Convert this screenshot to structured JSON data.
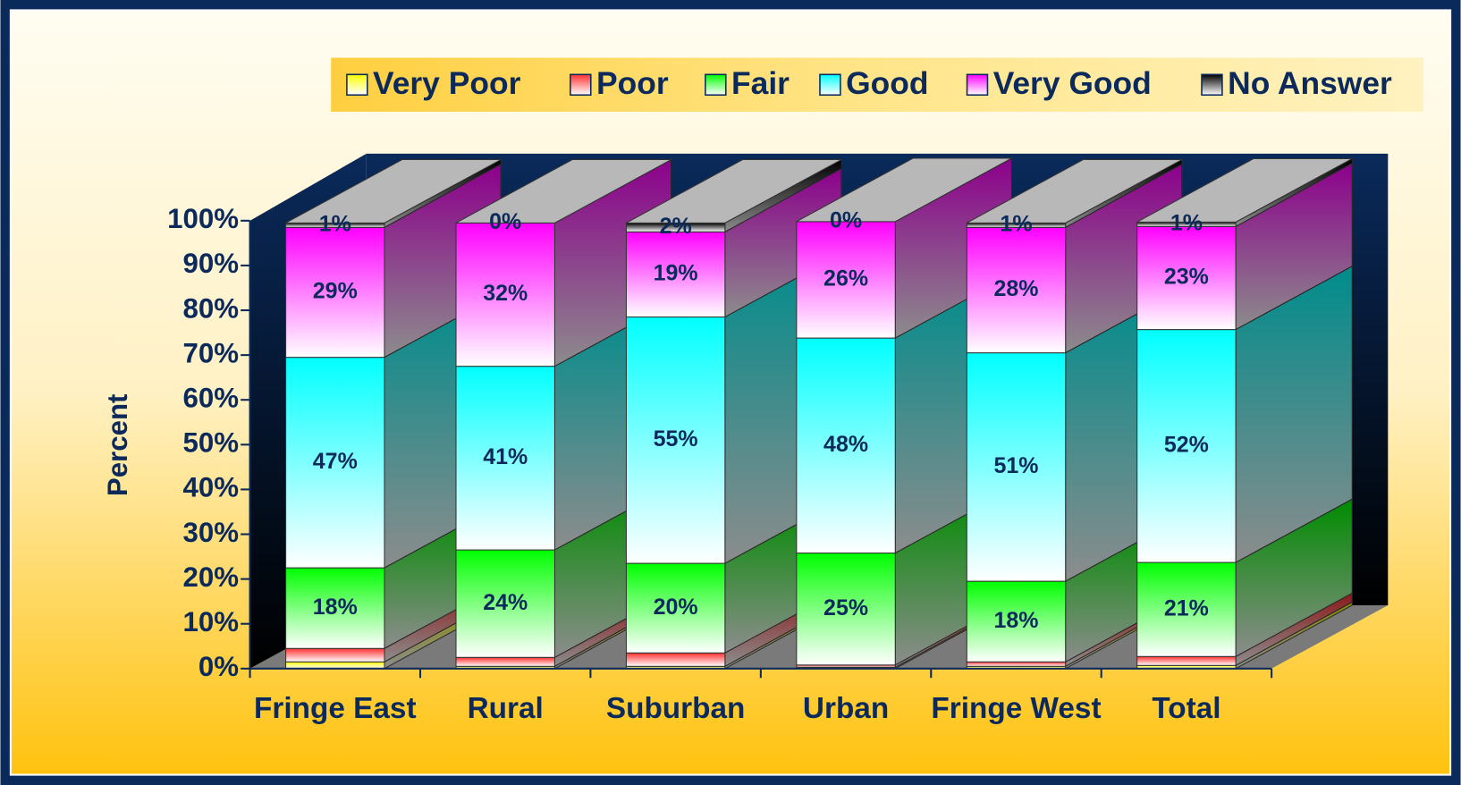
{
  "chart_data": {
    "type": "bar3d_stacked",
    "y_label": "Percent",
    "categories": [
      "Fringe East",
      "Rural",
      "Suburban",
      "Urban",
      "Fringe West",
      "Total"
    ],
    "series": [
      {
        "name": "Very Poor",
        "color": "#ffff00",
        "values": [
          1.5,
          0.5,
          0.5,
          0.3,
          0.5,
          0.7
        ]
      },
      {
        "name": "Poor",
        "color": "#ff3030",
        "values": [
          3,
          2,
          3,
          0.5,
          1,
          2
        ]
      },
      {
        "name": "Fair",
        "color": "#00ff00",
        "values": [
          18,
          24,
          20,
          25,
          18,
          21
        ],
        "value_labels": [
          "18%",
          "24%",
          "20%",
          "25%",
          "18%",
          "21%"
        ]
      },
      {
        "name": "Good",
        "color": "#00ffff",
        "values": [
          47,
          41,
          55,
          48,
          51,
          52
        ],
        "value_labels": [
          "47%",
          "41%",
          "55%",
          "48%",
          "51%",
          "52%"
        ]
      },
      {
        "name": "Very Good",
        "color": "#ff00ff",
        "values": [
          29,
          32,
          19,
          26,
          28,
          23
        ],
        "value_labels": [
          "29%",
          "32%",
          "19%",
          "26%",
          "28%",
          "23%"
        ]
      },
      {
        "name": "No Answer",
        "color": "#000000",
        "values": [
          1,
          0,
          2,
          0,
          1,
          1
        ],
        "value_labels": [
          "1%",
          "0%",
          "2%",
          "0%",
          "1%",
          "1%"
        ]
      }
    ],
    "ylim": [
      0,
      100
    ],
    "yticks": [
      {
        "value": 0,
        "label": "0%"
      },
      {
        "value": 10,
        "label": "10%"
      },
      {
        "value": 20,
        "label": "20%"
      },
      {
        "value": 30,
        "label": "30%"
      },
      {
        "value": 40,
        "label": "40%"
      },
      {
        "value": 50,
        "label": "50%"
      },
      {
        "value": 60,
        "label": "60%"
      },
      {
        "value": 70,
        "label": "70%"
      },
      {
        "value": 80,
        "label": "80%"
      },
      {
        "value": 90,
        "label": "90%"
      },
      {
        "value": 100,
        "label": "100%"
      }
    ],
    "legend": "top"
  }
}
